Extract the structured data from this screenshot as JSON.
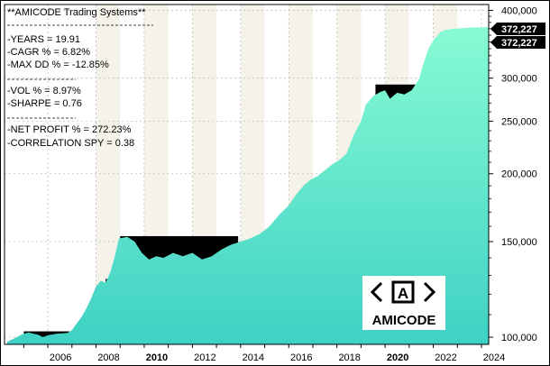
{
  "stats": {
    "title": "**AMICODE Trading Systems**",
    "lines": [
      "-YEARS  = 19.91",
      "-CAGR %  = 6.82%",
      "-MAX DD %  = -12.85%",
      "-VOL % = 8.97%",
      "-SHARPE = 0.76",
      "-NET PROFIT % = 272.23%",
      "-CORRELATION SPY  = 0.38"
    ]
  },
  "logo": {
    "text": "AMICODE",
    "glyph": "A"
  },
  "last_value_labels": [
    "372,227",
    "372,227"
  ],
  "colors": {
    "background": "#ffffff",
    "band": "#f5f2ea",
    "area_top": "#87fbd3",
    "area_bottom": "#3fd1c5",
    "drawdown": "#000000",
    "grid": "#bdbdbd",
    "price_tag": "#000000"
  },
  "chart_data": {
    "type": "area",
    "scale": "log",
    "ylim": [
      97000,
      410000
    ],
    "xlim": [
      2004.2,
      2024.3
    ],
    "y_ticks": [
      100000,
      150000,
      200000,
      250000,
      300000,
      400000
    ],
    "y_tick_labels": [
      "100,000",
      "150,000",
      "200,000",
      "250,000",
      "300,000",
      "400,000"
    ],
    "x_ticks": [
      2006,
      2008,
      2010,
      2012,
      2014,
      2016,
      2018,
      2020,
      2022,
      2024
    ],
    "x_tick_labels": [
      "2006",
      "2008",
      "2010",
      "2012",
      "2014",
      "2016",
      "2018",
      "2020",
      "2022",
      "2024"
    ],
    "bold_x_ticks": [
      "2010",
      "2020"
    ],
    "shaded_years": [
      2008,
      2010,
      2012,
      2014,
      2016,
      2018,
      2020,
      2022
    ],
    "series": [
      {
        "values": [
          [
            2004.3,
            98000
          ],
          [
            2004.5,
            99000
          ],
          [
            2004.8,
            100500
          ],
          [
            2005.0,
            101500
          ],
          [
            2005.2,
            102000
          ],
          [
            2005.6,
            101000
          ],
          [
            2005.8,
            100000
          ],
          [
            2006.0,
            100800
          ],
          [
            2006.4,
            101500
          ],
          [
            2006.8,
            101800
          ],
          [
            2007.0,
            103000
          ],
          [
            2007.2,
            106000
          ],
          [
            2007.4,
            109000
          ],
          [
            2007.6,
            113000
          ],
          [
            2007.8,
            118000
          ],
          [
            2008.0,
            124000
          ],
          [
            2008.2,
            127000
          ],
          [
            2008.4,
            126000
          ],
          [
            2008.6,
            132000
          ],
          [
            2008.8,
            142000
          ],
          [
            2008.95,
            152000
          ],
          [
            2009.3,
            153000
          ],
          [
            2009.6,
            150000
          ],
          [
            2009.9,
            143000
          ],
          [
            2010.2,
            139000
          ],
          [
            2010.5,
            141000
          ],
          [
            2010.8,
            140000
          ],
          [
            2011.2,
            143000
          ],
          [
            2011.6,
            141000
          ],
          [
            2012.0,
            143000
          ],
          [
            2012.4,
            139000
          ],
          [
            2012.8,
            141000
          ],
          [
            2013.2,
            145000
          ],
          [
            2013.6,
            148000
          ],
          [
            2014.0,
            150000
          ],
          [
            2014.4,
            152000
          ],
          [
            2014.8,
            155000
          ],
          [
            2015.2,
            160000
          ],
          [
            2015.6,
            168000
          ],
          [
            2016.0,
            175000
          ],
          [
            2016.3,
            183000
          ],
          [
            2016.6,
            190000
          ],
          [
            2016.9,
            195000
          ],
          [
            2017.2,
            198000
          ],
          [
            2017.5,
            203000
          ],
          [
            2017.8,
            208000
          ],
          [
            2018.1,
            212000
          ],
          [
            2018.4,
            218000
          ],
          [
            2018.7,
            236000
          ],
          [
            2019.0,
            250000
          ],
          [
            2019.2,
            268000
          ],
          [
            2019.5,
            278000
          ],
          [
            2019.8,
            283000
          ],
          [
            2020.0,
            285000
          ],
          [
            2020.2,
            275000
          ],
          [
            2020.5,
            282000
          ],
          [
            2020.8,
            280000
          ],
          [
            2021.1,
            285000
          ],
          [
            2021.4,
            298000
          ],
          [
            2021.6,
            320000
          ],
          [
            2021.8,
            340000
          ],
          [
            2022.0,
            352000
          ],
          [
            2022.3,
            365000
          ],
          [
            2022.5,
            368000
          ],
          [
            2022.9,
            370000
          ],
          [
            2023.3,
            371000
          ],
          [
            2023.7,
            372000
          ],
          [
            2024.2,
            372227
          ]
        ],
        "drawdowns": [
          {
            "x": [
              2005.0,
              2006.9
            ],
            "peak": 102500,
            "low": 99500
          },
          {
            "x": [
              2008.4,
              2008.6
            ],
            "peak": 128000,
            "low": 125000
          },
          {
            "x": [
              2009.0,
              2013.9
            ],
            "peak": 153500,
            "low": 137000
          },
          {
            "x": [
              2019.6,
              2021.5
            ],
            "peak": 292000,
            "low": 273000
          }
        ]
      }
    ]
  }
}
